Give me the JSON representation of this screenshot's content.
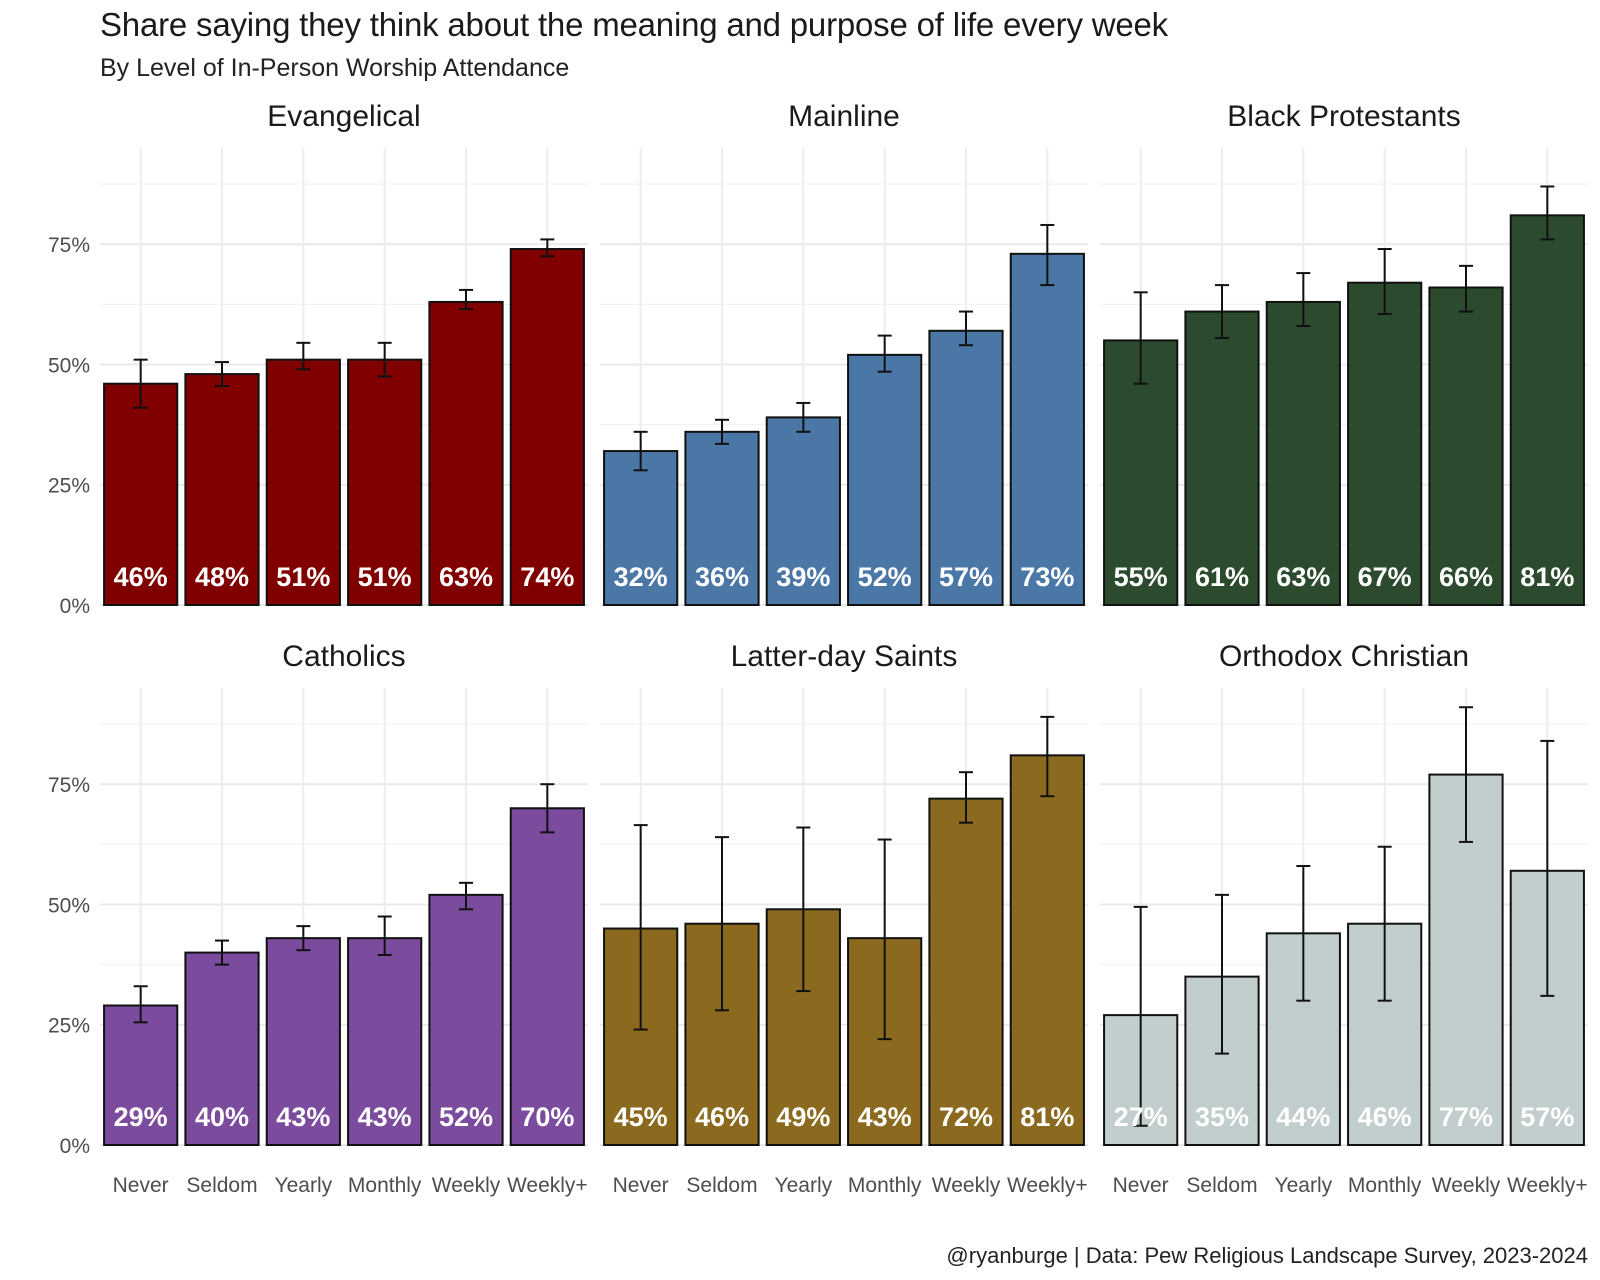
{
  "chart_data": {
    "type": "bar",
    "title": "Share saying they think about the meaning and purpose of life every week",
    "subtitle": "By Level of In-Person Worship Attendance",
    "caption": "@ryanburge | Data: Pew Religious Landscape Survey, 2023-2024",
    "categories": [
      "Never",
      "Seldom",
      "Yearly",
      "Monthly",
      "Weekly",
      "Weekly+"
    ],
    "y_ticks": [
      0,
      25,
      50,
      75
    ],
    "y_tick_labels": [
      "0%",
      "25%",
      "50%",
      "75%"
    ],
    "ylim": [
      0,
      95
    ],
    "grid": true,
    "facets": [
      {
        "name": "Evangelical",
        "color": "#800000",
        "label_color": "#ffffff",
        "values": [
          46,
          48,
          51,
          51,
          63,
          74
        ],
        "labels": [
          "46%",
          "48%",
          "51%",
          "51%",
          "63%",
          "74%"
        ],
        "err_low": [
          41,
          45.5,
          49,
          47.5,
          61.5,
          72.5
        ],
        "err_high": [
          51,
          50.5,
          54.5,
          54.5,
          65.5,
          76
        ]
      },
      {
        "name": "Mainline",
        "color": "#4b77a7",
        "label_color": "#ffffff",
        "values": [
          32,
          36,
          39,
          52,
          57,
          73
        ],
        "labels": [
          "32%",
          "36%",
          "39%",
          "52%",
          "57%",
          "73%"
        ],
        "err_low": [
          28,
          33.5,
          36,
          48.5,
          54,
          66.5
        ],
        "err_high": [
          36,
          38.5,
          42,
          56,
          61,
          79
        ]
      },
      {
        "name": "Black Protestants",
        "color": "#2c4a2d",
        "label_color": "#ffffff",
        "values": [
          55,
          61,
          63,
          67,
          66,
          81
        ],
        "labels": [
          "55%",
          "61%",
          "63%",
          "67%",
          "66%",
          "81%"
        ],
        "err_low": [
          46,
          55.5,
          58,
          60.5,
          61,
          76
        ],
        "err_high": [
          65,
          66.5,
          69,
          74,
          70.5,
          87
        ]
      },
      {
        "name": "Catholics",
        "color": "#7b4b9e",
        "label_color": "#ffffff",
        "values": [
          29,
          40,
          43,
          43,
          52,
          70
        ],
        "labels": [
          "29%",
          "40%",
          "43%",
          "43%",
          "52%",
          "70%"
        ],
        "err_low": [
          25.5,
          37.5,
          40.5,
          39.5,
          49,
          65
        ],
        "err_high": [
          33,
          42.5,
          45.5,
          47.5,
          54.5,
          75
        ]
      },
      {
        "name": "Latter-day Saints",
        "color": "#8b6a1f",
        "label_color": "#ffffff",
        "values": [
          45,
          46,
          49,
          43,
          72,
          81
        ],
        "labels": [
          "45%",
          "46%",
          "49%",
          "43%",
          "72%",
          "81%"
        ],
        "err_low": [
          24,
          28,
          32,
          22,
          67,
          72.5
        ],
        "err_high": [
          66.5,
          64,
          66,
          63.5,
          77.5,
          89
        ]
      },
      {
        "name": "Orthodox Christian",
        "color": "#c2cece",
        "label_color": "#ffffff",
        "values": [
          27,
          35,
          44,
          46,
          77,
          57
        ],
        "labels": [
          "27%",
          "35%",
          "44%",
          "46%",
          "77%",
          "57%"
        ],
        "err_low": [
          4,
          19,
          30,
          30,
          63,
          31
        ],
        "err_high": [
          49.5,
          52,
          58,
          62,
          91,
          84
        ]
      }
    ]
  }
}
